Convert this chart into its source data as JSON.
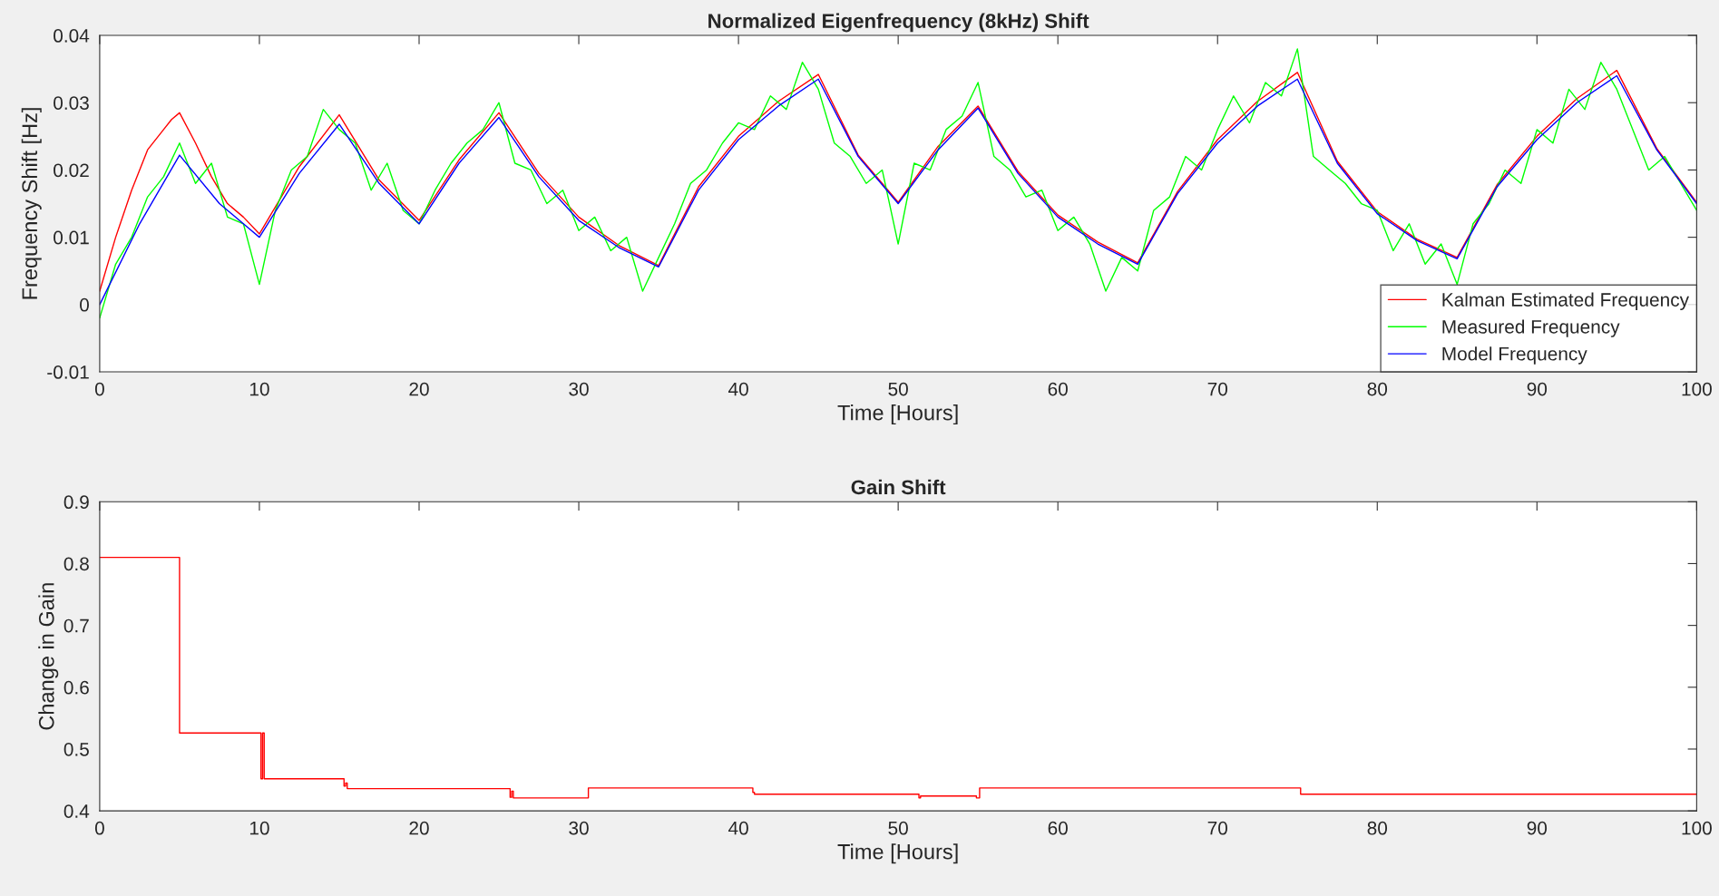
{
  "chart_data": [
    {
      "type": "line",
      "title": "Normalized Eigenfrequency (8kHz) Shift",
      "xlabel": "Time [Hours]",
      "ylabel": "Frequency Shift [Hz]",
      "xlim": [
        0,
        100
      ],
      "xticks": [
        0,
        10,
        20,
        30,
        40,
        50,
        60,
        70,
        80,
        90,
        100
      ],
      "ylim": [
        -0.01,
        0.04
      ],
      "yticks": [
        -0.01,
        0,
        0.01,
        0.02,
        0.03,
        0.04
      ],
      "grid": false,
      "legend": "bottom right",
      "line_style": "solid",
      "series": [
        {
          "name": "Kalman Estimated Frequency",
          "color": "#ff0000",
          "x": [
            0,
            1,
            2,
            3,
            4,
            4.5,
            5,
            6,
            7,
            8,
            9,
            10,
            12.5,
            15,
            17.5,
            20,
            22.5,
            25,
            27.5,
            30,
            32.5,
            35,
            37.5,
            40,
            42.5,
            45,
            47.5,
            50,
            52.5,
            55,
            57.5,
            60,
            62.5,
            65,
            67.5,
            70,
            72.5,
            75,
            77.5,
            80,
            82.5,
            85,
            87.5,
            90,
            92.5,
            95,
            97.5,
            100
          ],
          "values": [
            0.002,
            0.01,
            0.017,
            0.023,
            0.026,
            0.0275,
            0.0285,
            0.024,
            0.019,
            0.015,
            0.013,
            0.0105,
            0.0205,
            0.0282,
            0.0185,
            0.0125,
            0.0215,
            0.0285,
            0.0195,
            0.013,
            0.0088,
            0.0058,
            0.0175,
            0.025,
            0.0302,
            0.0342,
            0.0222,
            0.0152,
            0.0235,
            0.0295,
            0.0198,
            0.0133,
            0.0093,
            0.0062,
            0.0168,
            0.0245,
            0.0302,
            0.0345,
            0.0213,
            0.0138,
            0.0097,
            0.007,
            0.0178,
            0.025,
            0.0306,
            0.0348,
            0.0232,
            0.0152
          ]
        },
        {
          "name": "Measured Frequency",
          "color": "#00ff00",
          "x": [
            0,
            1,
            2,
            3,
            4,
            5,
            6,
            7,
            8,
            9,
            10,
            11,
            12,
            13,
            14,
            15,
            16,
            17,
            18,
            19,
            20,
            21,
            22,
            23,
            24,
            25,
            26,
            27,
            28,
            29,
            30,
            31,
            32,
            33,
            34,
            35,
            36,
            37,
            38,
            39,
            40,
            41,
            42,
            43,
            44,
            45,
            46,
            47,
            48,
            49,
            50,
            51,
            52,
            53,
            54,
            55,
            56,
            57,
            58,
            59,
            60,
            61,
            62,
            63,
            64,
            65,
            66,
            67,
            68,
            69,
            70,
            71,
            72,
            73,
            74,
            75,
            76,
            77,
            78,
            79,
            80,
            81,
            82,
            83,
            84,
            85,
            86,
            87,
            88,
            89,
            90,
            91,
            92,
            93,
            94,
            95,
            96,
            97,
            98,
            99,
            100
          ],
          "values": [
            -0.002,
            0.006,
            0.01,
            0.016,
            0.019,
            0.024,
            0.018,
            0.021,
            0.013,
            0.012,
            0.003,
            0.014,
            0.02,
            0.022,
            0.029,
            0.026,
            0.024,
            0.017,
            0.021,
            0.014,
            0.012,
            0.017,
            0.021,
            0.024,
            0.026,
            0.03,
            0.021,
            0.02,
            0.015,
            0.017,
            0.011,
            0.013,
            0.008,
            0.01,
            0.002,
            0.007,
            0.012,
            0.018,
            0.02,
            0.024,
            0.027,
            0.026,
            0.031,
            0.029,
            0.036,
            0.032,
            0.024,
            0.022,
            0.018,
            0.02,
            0.009,
            0.021,
            0.02,
            0.026,
            0.028,
            0.033,
            0.022,
            0.02,
            0.016,
            0.017,
            0.011,
            0.013,
            0.009,
            0.002,
            0.007,
            0.005,
            0.014,
            0.016,
            0.022,
            0.02,
            0.026,
            0.031,
            0.027,
            0.033,
            0.031,
            0.038,
            0.022,
            0.02,
            0.018,
            0.015,
            0.014,
            0.008,
            0.012,
            0.006,
            0.009,
            0.003,
            0.012,
            0.015,
            0.02,
            0.018,
            0.026,
            0.024,
            0.032,
            0.029,
            0.036,
            0.032,
            0.026,
            0.02,
            0.022,
            0.018,
            0.014
          ]
        },
        {
          "name": "Model Frequency",
          "color": "#0000ff",
          "x": [
            0,
            2.5,
            5,
            7.5,
            10,
            12.5,
            15,
            17.5,
            20,
            22.5,
            25,
            27.5,
            30,
            32.5,
            35,
            37.5,
            40,
            42.5,
            45,
            47.5,
            50,
            52.5,
            55,
            57.5,
            60,
            62.5,
            65,
            67.5,
            70,
            72.5,
            75,
            77.5,
            80,
            82.5,
            85,
            87.5,
            90,
            92.5,
            95,
            97.5,
            100
          ],
          "values": [
            0,
            0.012,
            0.0222,
            0.015,
            0.01,
            0.0195,
            0.0268,
            0.018,
            0.012,
            0.021,
            0.0278,
            0.019,
            0.0125,
            0.0085,
            0.0056,
            0.017,
            0.0245,
            0.0295,
            0.0335,
            0.022,
            0.015,
            0.023,
            0.0292,
            0.0195,
            0.013,
            0.009,
            0.006,
            0.0165,
            0.024,
            0.0295,
            0.0335,
            0.021,
            0.0135,
            0.0095,
            0.0068,
            0.0175,
            0.0245,
            0.03,
            0.034,
            0.023,
            0.015
          ]
        }
      ]
    },
    {
      "type": "step",
      "title": "Gain Shift",
      "xlabel": "Time [Hours]",
      "ylabel": "Change in Gain",
      "xlim": [
        0,
        100
      ],
      "xticks": [
        0,
        10,
        20,
        30,
        40,
        50,
        60,
        70,
        80,
        90,
        100
      ],
      "ylim": [
        0.4,
        0.9
      ],
      "yticks": [
        0.4,
        0.5,
        0.6,
        0.7,
        0.8,
        0.9
      ],
      "grid": false,
      "line_style": "solid",
      "series": [
        {
          "color": "#ff0000",
          "x": [
            0,
            4.9,
            5.0,
            10.0,
            10.1,
            10.2,
            10.3,
            15.2,
            15.3,
            15.4,
            15.5,
            25.6,
            25.7,
            25.8,
            25.9,
            30.4,
            30.6,
            40.8,
            40.9,
            41.0,
            51.2,
            51.3,
            51.4,
            54.9,
            55.1,
            75.0,
            75.2,
            100
          ],
          "values": [
            0.81,
            0.81,
            0.526,
            0.526,
            0.452,
            0.526,
            0.452,
            0.452,
            0.44,
            0.445,
            0.436,
            0.436,
            0.422,
            0.432,
            0.421,
            0.421,
            0.437,
            0.437,
            0.43,
            0.427,
            0.427,
            0.421,
            0.424,
            0.421,
            0.437,
            0.437,
            0.427,
            0.427
          ]
        }
      ]
    }
  ]
}
